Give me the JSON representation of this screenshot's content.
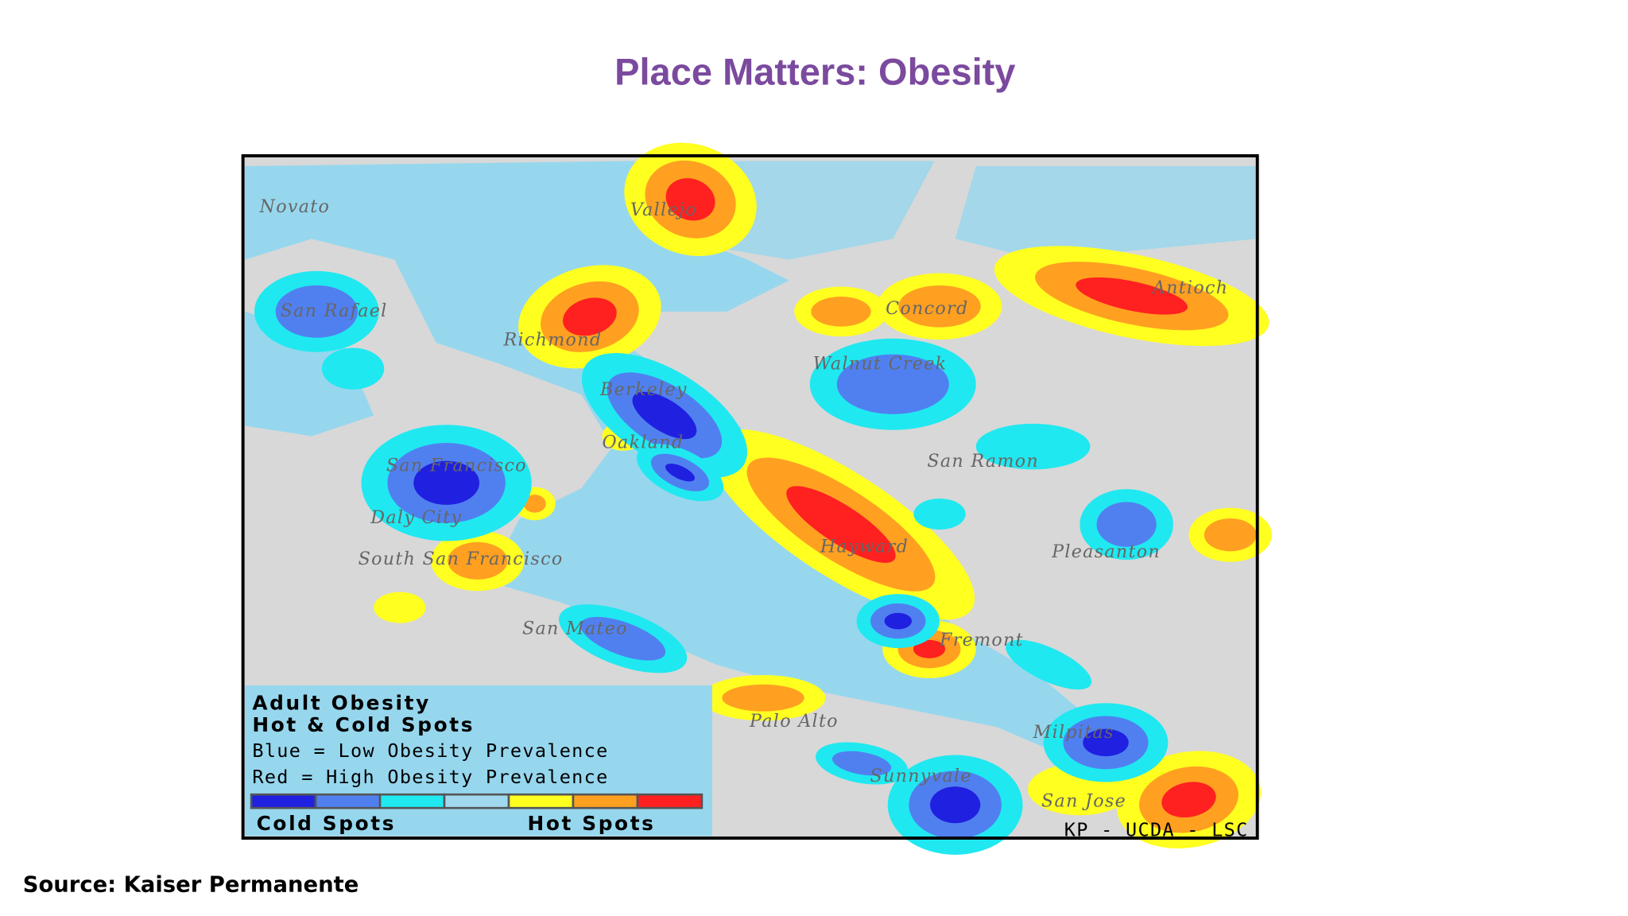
{
  "header": {
    "title": "Place Matters: Obesity"
  },
  "map": {
    "places": [
      "Novato",
      "Vallejo",
      "San Rafael",
      "Richmond",
      "Concord",
      "Antioch",
      "Walnut Creek",
      "Berkeley",
      "Oakland",
      "San Francisco",
      "San Ramon",
      "Daly City",
      "Hayward",
      "Pleasanton",
      "South San Francisco",
      "San Mateo",
      "Fremont",
      "Palo Alto",
      "Milpitas",
      "Sunnyvale",
      "San Jose"
    ],
    "credit": "KP - UCDA - LSC",
    "legend": {
      "title_lines": [
        "Adult Obesity",
        "Hot & Cold Spots"
      ],
      "lines": [
        "Blue = Low Obesity Prevalence",
        "Red = High Obesity Prevalence"
      ],
      "low_label": "Cold Spots",
      "high_label": "Hot Spots"
    }
  },
  "footer": {
    "source": "Source:  Kaiser Permanente"
  }
}
